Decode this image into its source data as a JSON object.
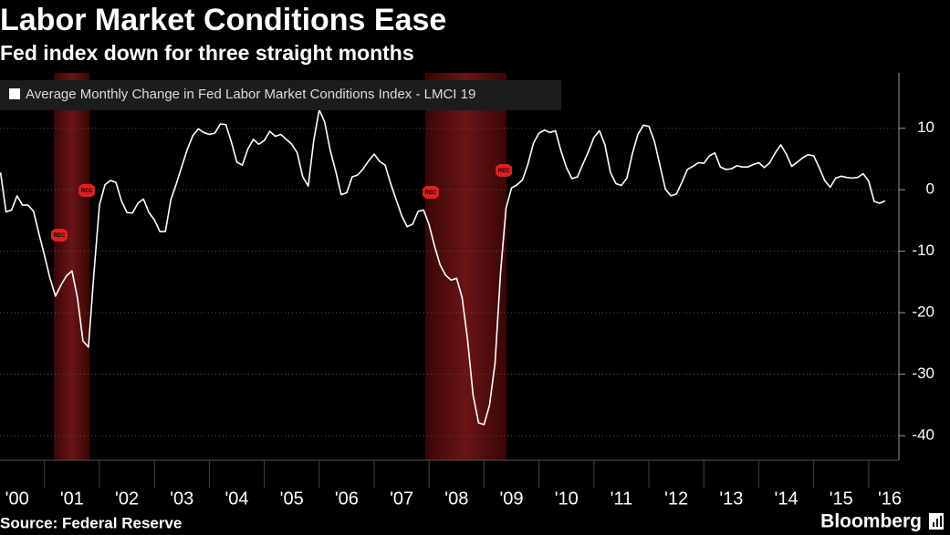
{
  "chart_data": {
    "type": "line",
    "title": "Labor Market Conditions Ease",
    "subtitle": "Fed index down for three straight months",
    "source": "Source: Federal Reserve",
    "credit": "Bloomberg",
    "grid": true,
    "xlim": [
      2000.19,
      2016.55
    ],
    "ylim": [
      -44,
      19
    ],
    "yticks": [
      10,
      0,
      -10,
      -20,
      -30,
      -40
    ],
    "xticks": [
      {
        "value": 2000,
        "label": "'00"
      },
      {
        "value": 2001,
        "label": "'01"
      },
      {
        "value": 2002,
        "label": "'02"
      },
      {
        "value": 2003,
        "label": "'03"
      },
      {
        "value": 2004,
        "label": "'04"
      },
      {
        "value": 2005,
        "label": "'05"
      },
      {
        "value": 2006,
        "label": "'06"
      },
      {
        "value": 2007,
        "label": "'07"
      },
      {
        "value": 2008,
        "label": "'08"
      },
      {
        "value": 2009,
        "label": "'09"
      },
      {
        "value": 2010,
        "label": "'10"
      },
      {
        "value": 2011,
        "label": "'11"
      },
      {
        "value": 2012,
        "label": "'12"
      },
      {
        "value": 2013,
        "label": "'13"
      },
      {
        "value": 2014,
        "label": "'14"
      },
      {
        "value": 2015,
        "label": "'15"
      },
      {
        "value": 2016,
        "label": "'16"
      }
    ],
    "recessions": [
      {
        "start": 2001.17,
        "end": 2001.82,
        "label": "REC"
      },
      {
        "start": 2007.93,
        "end": 2009.41,
        "label": "REC"
      }
    ],
    "x": [
      2000.2,
      2000.3,
      2000.4,
      2000.5,
      2000.6,
      2000.7,
      2000.8,
      2000.9,
      2001,
      2001.1,
      2001.2,
      2001.3,
      2001.4,
      2001.5,
      2001.6,
      2001.7,
      2001.8,
      2001.9,
      2002,
      2002.1,
      2002.2,
      2002.3,
      2002.4,
      2002.5,
      2002.6,
      2002.7,
      2002.8,
      2002.9,
      2003,
      2003.1,
      2003.2,
      2003.3,
      2003.4,
      2003.5,
      2003.6,
      2003.7,
      2003.8,
      2003.9,
      2004,
      2004.1,
      2004.2,
      2004.3,
      2004.4,
      2004.5,
      2004.6,
      2004.7,
      2004.8,
      2004.9,
      2005,
      2005.1,
      2005.2,
      2005.3,
      2005.4,
      2005.5,
      2005.6,
      2005.7,
      2005.8,
      2005.9,
      2006,
      2006.1,
      2006.2,
      2006.3,
      2006.4,
      2006.5,
      2006.6,
      2006.7,
      2006.8,
      2006.9,
      2007,
      2007.1,
      2007.2,
      2007.3,
      2007.4,
      2007.5,
      2007.6,
      2007.7,
      2007.8,
      2007.9,
      2008,
      2008.1,
      2008.2,
      2008.3,
      2008.4,
      2008.5,
      2008.6,
      2008.7,
      2008.8,
      2008.9,
      2009,
      2009.1,
      2009.2,
      2009.3,
      2009.4,
      2009.5,
      2009.6,
      2009.7,
      2009.8,
      2009.9,
      2010,
      2010.1,
      2010.2,
      2010.3,
      2010.4,
      2010.5,
      2010.6,
      2010.7,
      2010.8,
      2010.9,
      2011,
      2011.1,
      2011.2,
      2011.3,
      2011.4,
      2011.5,
      2011.6,
      2011.7,
      2011.8,
      2011.9,
      2012,
      2012.1,
      2012.2,
      2012.3,
      2012.4,
      2012.5,
      2012.6,
      2012.7,
      2012.8,
      2012.9,
      2013,
      2013.1,
      2013.2,
      2013.3,
      2013.4,
      2013.5,
      2013.6,
      2013.7,
      2013.8,
      2013.9,
      2014,
      2014.1,
      2014.2,
      2014.3,
      2014.4,
      2014.5,
      2014.6,
      2014.7,
      2014.8,
      2014.9,
      2015,
      2015.1,
      2015.2,
      2015.3,
      2015.4,
      2015.5,
      2015.6,
      2015.7,
      2015.8,
      2015.9,
      2016,
      2016.1,
      2016.2,
      2016.3
    ],
    "series": [
      {
        "name": "Average Monthly Change in Fed Labor Market Conditions Index - LMCI 19",
        "color": "#ffffff",
        "values": [
          2.8,
          -3.6,
          -3.3,
          -1.0,
          -2.5,
          -2.5,
          -3.5,
          -7.2,
          -10.7,
          -14.4,
          -17.3,
          -15.5,
          -14.0,
          -13.2,
          -17.6,
          -24.6,
          -25.6,
          -13.5,
          -2.5,
          0.8,
          1.5,
          1.2,
          -1.8,
          -3.7,
          -3.8,
          -2.2,
          -1.5,
          -3.7,
          -4.9,
          -6.8,
          -6.8,
          -1.6,
          1.0,
          3.8,
          6.6,
          8.8,
          9.9,
          9.3,
          9.0,
          9.2,
          10.7,
          10.6,
          7.8,
          4.5,
          4.0,
          6.6,
          8.2,
          7.4,
          8.0,
          9.5,
          8.7,
          9.0,
          8.2,
          7.4,
          6.0,
          2.1,
          0.6,
          8.0,
          13.0,
          11.0,
          6.4,
          3.0,
          -0.8,
          -0.5,
          2.1,
          2.4,
          3.4,
          4.7,
          5.8,
          4.6,
          4.0,
          1.0,
          -1.6,
          -4.2,
          -6.0,
          -5.6,
          -3.5,
          -3.3,
          -5.7,
          -9.2,
          -12.2,
          -13.9,
          -14.7,
          -14.4,
          -17.5,
          -24.4,
          -33.4,
          -37.9,
          -38.2,
          -35.0,
          -28.2,
          -13.5,
          -3.0,
          0.3,
          0.8,
          1.6,
          4.2,
          7.6,
          9.2,
          9.7,
          9.3,
          9.6,
          6.3,
          3.6,
          1.8,
          2.1,
          4.2,
          6.2,
          8.5,
          9.6,
          7.3,
          2.8,
          1.0,
          0.7,
          1.9,
          5.9,
          9.0,
          10.5,
          10.3,
          7.9,
          4.0,
          0.1,
          -1.0,
          -0.7,
          1.2,
          3.3,
          3.8,
          4.4,
          4.3,
          5.5,
          6.0,
          3.7,
          3.3,
          3.4,
          3.9,
          3.7,
          3.7,
          4.1,
          4.4,
          3.6,
          4.4,
          6.0,
          7.3,
          5.8,
          3.8,
          4.5,
          5.2,
          5.7,
          5.5,
          3.6,
          1.5,
          0.4,
          1.9,
          2.2,
          2.0,
          1.9,
          2.0,
          2.6,
          1.4,
          -1.9,
          -2.2,
          -1.8
        ]
      }
    ]
  }
}
